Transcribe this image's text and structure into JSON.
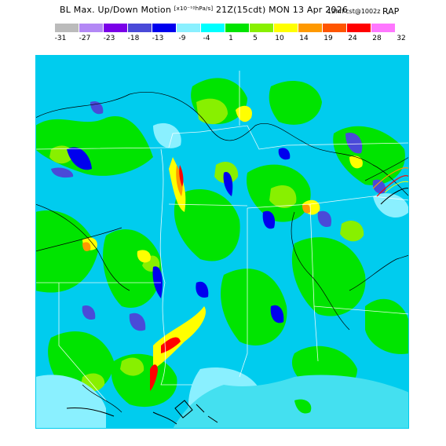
{
  "title": {
    "main_prefix": "BL Max. Up/Down Motion",
    "units": "[x10⁻¹ºhPa/s]",
    "run": "21Z(15cdt) MON 13 Apr 2026",
    "forecast": "12hrFcst@1002z",
    "model": "RAP"
  },
  "legend": {
    "colors": [
      "#bbbbbb",
      "#b388f5",
      "#7a00e8",
      "#4a4ad8",
      "#0000ee",
      "#8af0ff",
      "#00ffff",
      "#00e400",
      "#88f000",
      "#ffff00",
      "#ff9900",
      "#ff5500",
      "#ff0000",
      "#ff77ff"
    ],
    "ticks": [
      "-31",
      "-27",
      "-23",
      "-18",
      "-13",
      "-9",
      "-4",
      "1",
      "5",
      "10",
      "14",
      "19",
      "24",
      "28",
      "32"
    ]
  },
  "map": {
    "background": "#00ccee",
    "gulf_color": "#44e0f0"
  }
}
